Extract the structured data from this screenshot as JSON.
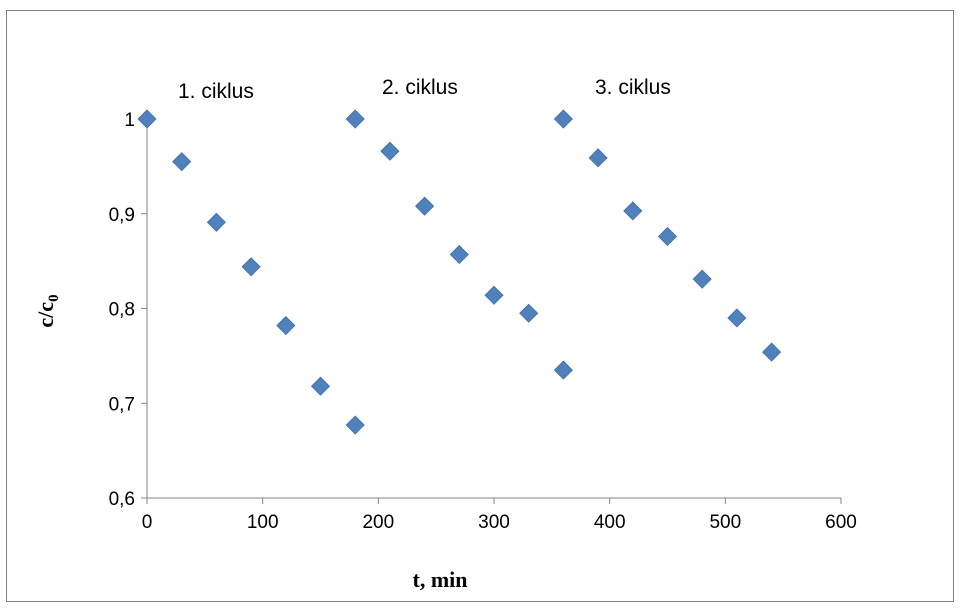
{
  "chart_data": {
    "type": "scatter",
    "xlabel": "t, min",
    "ylabel": {
      "main": "c/c",
      "sub": "0"
    },
    "xlim": [
      0,
      600
    ],
    "ylim": [
      0.6,
      1.0
    ],
    "x_ticks": [
      0,
      100,
      200,
      300,
      400,
      500,
      600
    ],
    "y_ticks": [
      0.6,
      0.7,
      0.8,
      0.9,
      1.0
    ],
    "x_tick_labels": [
      "0",
      "100",
      "200",
      "300",
      "400",
      "500",
      "600"
    ],
    "y_tick_labels": [
      "0,6",
      "0,7",
      "0,8",
      "0,9",
      "1"
    ],
    "grid": false,
    "legend": "none",
    "marker_color": "#4f81bd",
    "annotations": [
      "1. ciklus",
      "2. ciklus",
      "3. ciklus"
    ],
    "series": [
      {
        "points": [
          [
            0,
            1.0
          ],
          [
            30,
            0.955
          ],
          [
            60,
            0.891
          ],
          [
            90,
            0.844
          ],
          [
            120,
            0.782
          ],
          [
            150,
            0.718
          ],
          [
            180,
            0.677
          ],
          [
            180,
            1.0
          ],
          [
            210,
            0.966
          ],
          [
            240,
            0.908
          ],
          [
            270,
            0.857
          ],
          [
            300,
            0.814
          ],
          [
            330,
            0.795
          ],
          [
            360,
            0.735
          ],
          [
            360,
            1.0
          ],
          [
            390,
            0.959
          ],
          [
            420,
            0.903
          ],
          [
            450,
            0.876
          ],
          [
            480,
            0.831
          ],
          [
            510,
            0.79
          ],
          [
            540,
            0.754
          ]
        ]
      }
    ]
  }
}
